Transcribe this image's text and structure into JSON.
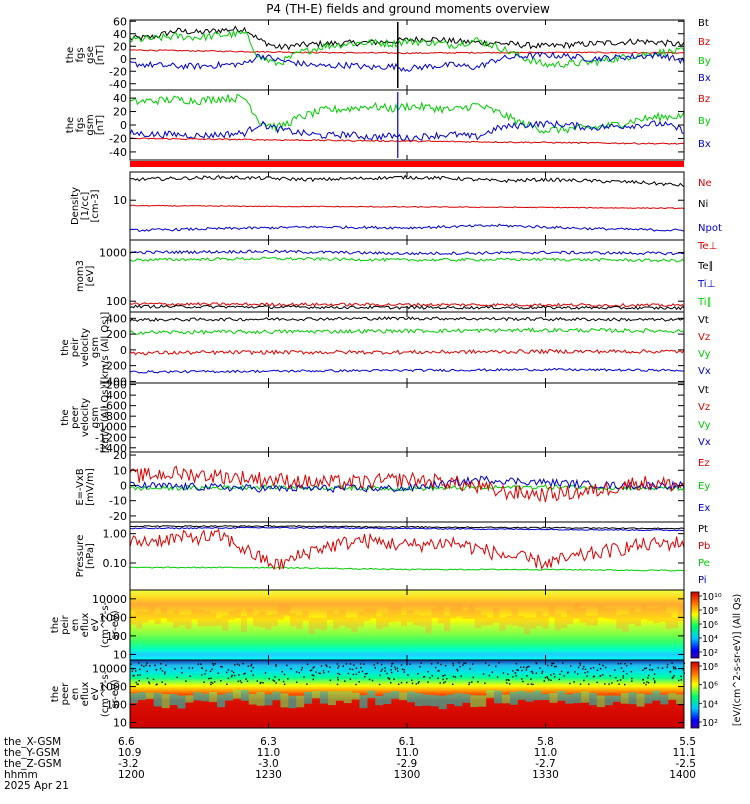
{
  "title": "P4 (TH-E) fields and ground moments overview",
  "chart_data": [
    {
      "type": "line",
      "ylabel": [
        "the",
        "fgs",
        "gse",
        "[nT]"
      ],
      "ylim": [
        -50,
        62
      ],
      "ytick_values": [
        60,
        40,
        20,
        0,
        -20,
        -40
      ],
      "ytick_labels": [
        "60",
        "40",
        "20",
        "0",
        "-20",
        "-40"
      ],
      "legend": [
        {
          "label": "Bt",
          "color": "#000000"
        },
        {
          "label": "Bz",
          "color": "#dd0000"
        },
        {
          "label": "By",
          "color": "#00cc00"
        },
        {
          "label": "Bx",
          "color": "#0000cc"
        }
      ],
      "series": [
        {
          "color": "#000000",
          "x": [
            1200,
            1205,
            1210,
            1215,
            1220,
            1225,
            1228,
            1232,
            1237,
            1242,
            1247,
            1252,
            1257,
            1300,
            1305,
            1310,
            1315,
            1320,
            1325,
            1330,
            1335,
            1340,
            1345,
            1350,
            1355,
            1400
          ],
          "values": [
            32,
            35,
            45,
            42,
            46,
            48,
            30,
            18,
            22,
            24,
            25,
            26,
            28,
            30,
            32,
            28,
            26,
            25,
            22,
            20,
            22,
            24,
            26,
            28,
            26,
            22
          ],
          "noise": 5
        },
        {
          "color": "#dd0000",
          "x": [
            1200,
            1220,
            1240,
            1300,
            1320,
            1340,
            1400
          ],
          "values": [
            14,
            12,
            10,
            9,
            10,
            10,
            9
          ],
          "noise": 1
        },
        {
          "color": "#00cc00",
          "x": [
            1200,
            1205,
            1210,
            1215,
            1220,
            1225,
            1228,
            1232,
            1237,
            1242,
            1247,
            1252,
            1257,
            1300,
            1305,
            1310,
            1315,
            1320,
            1325,
            1330,
            1335,
            1340,
            1345,
            1350,
            1355,
            1400
          ],
          "values": [
            30,
            32,
            36,
            34,
            38,
            40,
            2,
            -8,
            10,
            20,
            24,
            26,
            24,
            28,
            26,
            22,
            30,
            18,
            2,
            -10,
            -8,
            -6,
            0,
            6,
            10,
            12
          ],
          "noise": 6
        },
        {
          "color": "#0000cc",
          "x": [
            1200,
            1205,
            1210,
            1215,
            1220,
            1225,
            1228,
            1232,
            1237,
            1242,
            1247,
            1252,
            1257,
            1300,
            1305,
            1310,
            1315,
            1320,
            1325,
            1330,
            1335,
            1340,
            1345,
            1350,
            1355,
            1400
          ],
          "values": [
            -8,
            -10,
            -12,
            -12,
            -10,
            -8,
            6,
            -2,
            -8,
            -12,
            -10,
            -14,
            -12,
            -16,
            -12,
            -10,
            -14,
            0,
            4,
            6,
            4,
            0,
            2,
            4,
            6,
            -4
          ],
          "noise": 5
        }
      ]
    },
    {
      "type": "line",
      "ylabel": [
        "the",
        "fgs",
        "gsm",
        "[nT]"
      ],
      "ylim": [
        -52,
        52
      ],
      "ytick_values": [
        40,
        20,
        0,
        -20,
        -40
      ],
      "ytick_labels": [
        "40",
        "20",
        "0",
        "-20",
        "-40"
      ],
      "legend": [
        {
          "label": "Bz",
          "color": "#dd0000"
        },
        {
          "label": "By",
          "color": "#00cc00"
        },
        {
          "label": "Bx",
          "color": "#0000cc"
        }
      ],
      "series": [
        {
          "color": "#00cc00",
          "x": [
            1200,
            1205,
            1210,
            1215,
            1220,
            1225,
            1228,
            1232,
            1237,
            1242,
            1247,
            1252,
            1257,
            1300,
            1305,
            1310,
            1315,
            1320,
            1325,
            1330,
            1335,
            1340,
            1345,
            1350,
            1355,
            1400
          ],
          "values": [
            34,
            36,
            38,
            36,
            40,
            40,
            6,
            -4,
            12,
            22,
            24,
            28,
            24,
            28,
            26,
            22,
            30,
            18,
            2,
            -8,
            -6,
            -4,
            0,
            8,
            12,
            14
          ],
          "noise": 6
        },
        {
          "color": "#0000cc",
          "x": [
            1200,
            1205,
            1210,
            1215,
            1220,
            1225,
            1228,
            1232,
            1237,
            1242,
            1247,
            1252,
            1257,
            1300,
            1305,
            1310,
            1315,
            1320,
            1325,
            1330,
            1335,
            1340,
            1345,
            1350,
            1355,
            1400
          ],
          "values": [
            -12,
            -14,
            -14,
            -16,
            -14,
            -12,
            2,
            -6,
            -12,
            -16,
            -14,
            -18,
            -16,
            -20,
            -16,
            -14,
            -18,
            -4,
            0,
            2,
            0,
            -4,
            -2,
            0,
            2,
            -8
          ],
          "noise": 5
        },
        {
          "color": "#dd0000",
          "x": [
            1200,
            1230,
            1300,
            1330,
            1400
          ],
          "values": [
            -20,
            -22,
            -24,
            -26,
            -28
          ],
          "noise": 1
        }
      ]
    },
    {
      "type": "line",
      "ylabel": [
        "Density",
        "[1/cc]",
        "[cm-3]"
      ],
      "log": true,
      "ylim": [
        1.2,
        45
      ],
      "ytick_values": [
        10
      ],
      "ytick_labels": [
        "10"
      ],
      "legend": [
        {
          "label": "Ne",
          "color": "#dd0000"
        },
        {
          "label": "Ni",
          "color": "#000000"
        },
        {
          "label": "Npot",
          "color": "#0000cc"
        }
      ],
      "series": [
        {
          "color": "#000000",
          "x": [
            1200,
            1210,
            1220,
            1230,
            1240,
            1250,
            1300,
            1310,
            1320,
            1330,
            1340,
            1350,
            1400
          ],
          "values": [
            30,
            32,
            34,
            32,
            30,
            32,
            34,
            32,
            28,
            30,
            28,
            26,
            22
          ],
          "noise_log": 0.04
        },
        {
          "color": "#dd0000",
          "x": [
            1200,
            1230,
            1300,
            1330,
            1400
          ],
          "values": [
            7.5,
            7.2,
            7.0,
            6.8,
            6.5
          ],
          "noise_log": 0.01
        },
        {
          "color": "#0000cc",
          "x": [
            1200,
            1220,
            1240,
            1300,
            1320,
            1340,
            1400
          ],
          "values": [
            2.0,
            2.2,
            2.4,
            2.3,
            2.6,
            2.2,
            2.0
          ],
          "noise_log": 0.03
        }
      ]
    },
    {
      "type": "line",
      "ylabel": [
        "mom3",
        "[eV]"
      ],
      "log": true,
      "ylim": [
        60,
        1800
      ],
      "ytick_values": [
        1000,
        100
      ],
      "ytick_labels": [
        "1000",
        "100"
      ],
      "legend": [
        {
          "label": "Te⊥",
          "color": "#dd0000"
        },
        {
          "label": "Te∥",
          "color": "#000000"
        },
        {
          "label": "Ti⊥",
          "color": "#0000cc"
        },
        {
          "label": "Ti∥",
          "color": "#00cc00"
        }
      ],
      "series": [
        {
          "color": "#0000cc",
          "x": [
            1200,
            1230,
            1300,
            1330,
            1400
          ],
          "values": [
            1000,
            1050,
            950,
            1000,
            950
          ],
          "noise_log": 0.03
        },
        {
          "color": "#00cc00",
          "x": [
            1200,
            1230,
            1300,
            1330,
            1400
          ],
          "values": [
            700,
            750,
            700,
            720,
            680
          ],
          "noise_log": 0.03
        },
        {
          "color": "#dd0000",
          "x": [
            1200,
            1230,
            1300,
            1330,
            1400
          ],
          "values": [
            88,
            86,
            85,
            84,
            82
          ],
          "noise_log": 0.03
        },
        {
          "color": "#000000",
          "x": [
            1200,
            1230,
            1300,
            1330,
            1400
          ],
          "values": [
            78,
            76,
            74,
            74,
            72
          ],
          "noise_log": 0.03
        }
      ]
    },
    {
      "type": "line",
      "ylabel": [
        "the",
        "peir",
        "velocity",
        "gsm",
        "[km/s (All Qs)]"
      ],
      "ylim": [
        -420,
        480
      ],
      "ytick_values": [
        400,
        200,
        0,
        -200,
        -400
      ],
      "ytick_labels": [
        "400",
        "200",
        "0",
        "-200",
        "-400"
      ],
      "legend": [
        {
          "label": "Vt",
          "color": "#000000"
        },
        {
          "label": "Vz",
          "color": "#dd0000"
        },
        {
          "label": "Vy",
          "color": "#00cc00"
        },
        {
          "label": "Vx",
          "color": "#0000cc"
        }
      ],
      "series": [
        {
          "color": "#000000",
          "x": [
            1200,
            1230,
            1300,
            1330,
            1400
          ],
          "values": [
            380,
            390,
            400,
            390,
            380
          ],
          "noise": 20
        },
        {
          "color": "#00cc00",
          "x": [
            1200,
            1230,
            1300,
            1330,
            1400
          ],
          "values": [
            220,
            230,
            240,
            250,
            240
          ],
          "noise": 25
        },
        {
          "color": "#dd0000",
          "x": [
            1200,
            1230,
            1300,
            1330,
            1400
          ],
          "values": [
            -40,
            -30,
            -30,
            -20,
            -20
          ],
          "noise": 25
        },
        {
          "color": "#0000cc",
          "x": [
            1200,
            1230,
            1300,
            1330,
            1400
          ],
          "values": [
            -280,
            -270,
            -260,
            -250,
            -260
          ],
          "noise": 15
        }
      ]
    },
    {
      "type": "line",
      "ylabel": [
        "the",
        "peer",
        "velocity",
        "gsm",
        "[km/s (All Qs)]"
      ],
      "ylim": [
        -1480,
        -170
      ],
      "ytick_values": [
        -200,
        -400,
        -600,
        -800,
        -1000,
        -1200,
        -1400
      ],
      "ytick_labels": [
        "-200",
        "-400",
        "-600",
        "-800",
        "-1000",
        "-1200",
        "-1400"
      ],
      "legend": [
        {
          "label": "Vt",
          "color": "#000000"
        },
        {
          "label": "Vz",
          "color": "#dd0000"
        },
        {
          "label": "Vy",
          "color": "#00cc00"
        },
        {
          "label": "Vx",
          "color": "#0000cc"
        }
      ],
      "series": []
    },
    {
      "type": "line",
      "ylabel": [
        "E=-VxB",
        "[mV/m]"
      ],
      "ylim": [
        -24,
        22
      ],
      "ytick_values": [
        20,
        10,
        0,
        -10,
        -20
      ],
      "ytick_labels": [
        "20",
        "10",
        "0",
        "-10",
        "-20"
      ],
      "legend": [
        {
          "label": "Ez",
          "color": "#dd0000"
        },
        {
          "label": "Ey",
          "color": "#00cc00"
        },
        {
          "label": "Ex",
          "color": "#0000cc"
        }
      ],
      "series": [
        {
          "color": "#00cc00",
          "x": [
            1200,
            1230,
            1300,
            1330,
            1400
          ],
          "values": [
            -2,
            -1,
            -2,
            -1,
            -2
          ],
          "noise": 1.5
        },
        {
          "color": "#0000cc",
          "x": [
            1200,
            1230,
            1300,
            1316,
            1330,
            1345,
            1400
          ],
          "values": [
            0,
            -2,
            -2,
            4,
            2,
            0,
            0
          ],
          "noise": 2.5
        },
        {
          "color": "#dd0000",
          "x": [
            1200,
            1210,
            1220,
            1230,
            1240,
            1250,
            1300,
            1310,
            1320,
            1330,
            1340,
            1350,
            1400
          ],
          "values": [
            6,
            8,
            6,
            4,
            2,
            2,
            4,
            2,
            -4,
            -6,
            -4,
            2,
            0
          ],
          "noise": 5
        }
      ]
    },
    {
      "type": "line",
      "ylabel": [
        "Pressure",
        "[nPa]"
      ],
      "log": true,
      "ylim": [
        0.012,
        2.5
      ],
      "ytick_values": [
        1.0,
        0.1
      ],
      "ytick_labels": [
        "1.00",
        "0.10"
      ],
      "legend": [
        {
          "label": "Pt",
          "color": "#000000"
        },
        {
          "label": "Pb",
          "color": "#dd0000"
        },
        {
          "label": "Pe",
          "color": "#00cc00"
        },
        {
          "label": "Pi",
          "color": "#0000cc"
        }
      ],
      "series": [
        {
          "color": "#0000cc",
          "x": [
            1200,
            1230,
            1300,
            1330,
            1400
          ],
          "values": [
            1.5,
            1.6,
            1.5,
            1.4,
            1.3
          ],
          "noise_log": 0.02
        },
        {
          "color": "#000000",
          "x": [
            1200,
            1230,
            1300,
            1330,
            1400
          ],
          "values": [
            1.8,
            1.8,
            1.7,
            1.6,
            1.5
          ],
          "noise_log": 0.02
        },
        {
          "color": "#00cc00",
          "x": [
            1200,
            1230,
            1300,
            1330,
            1400
          ],
          "values": [
            0.07,
            0.07,
            0.06,
            0.06,
            0.055
          ],
          "noise_log": 0.02
        },
        {
          "color": "#dd0000",
          "x": [
            1200,
            1210,
            1220,
            1228,
            1232,
            1240,
            1250,
            1300,
            1310,
            1320,
            1330,
            1340,
            1350,
            1400
          ],
          "values": [
            0.5,
            0.7,
            0.8,
            0.15,
            0.08,
            0.3,
            0.6,
            0.4,
            0.5,
            0.2,
            0.1,
            0.2,
            0.4,
            0.5
          ],
          "noise_log": 0.25
        }
      ]
    },
    {
      "type": "heatmap",
      "ylabel": [
        "the",
        "peir",
        "en",
        "eflux",
        "eV",
        "(cm^2-s-",
        "sr-eV)"
      ],
      "log": true,
      "ylim": [
        5,
        30000
      ],
      "ytick_values": [
        10000,
        1000,
        100,
        10
      ],
      "ytick_labels": [
        "10000",
        "1000",
        "100",
        "10"
      ]
    },
    {
      "type": "heatmap",
      "ylabel": [
        "the",
        "peer",
        "en",
        "eflux",
        "eV",
        "(cm^2-s-",
        "sr-eV)"
      ],
      "log": true,
      "ylim": [
        5,
        30000
      ],
      "ytick_values": [
        10000,
        1000,
        100,
        10
      ],
      "ytick_labels": [
        "10000",
        "1000",
        "100",
        "10"
      ]
    }
  ],
  "colorbars": [
    {
      "ticks": [
        "10¹⁰",
        "10⁸",
        "10⁶",
        "10⁴",
        "10²"
      ]
    },
    {
      "ticks": [
        "10⁸",
        "10⁶",
        "10⁴",
        "10²"
      ]
    }
  ],
  "colorbar_label": "[eV/(cm^2-s-sr-eV)] (All Qs)",
  "x_axis": {
    "range": [
      1200,
      1400
    ],
    "ticks": [
      1200,
      1230,
      1300,
      1330,
      1400
    ],
    "rows": [
      {
        "label": "the_X-GSM",
        "values": [
          "6.6",
          "6.3",
          "6.1",
          "5.8",
          "5.5"
        ]
      },
      {
        "label": "the_Y-GSM",
        "values": [
          "10.9",
          "11.0",
          "11.0",
          "11.0",
          "11.1"
        ]
      },
      {
        "label": "the_Z-GSM",
        "values": [
          "-3.2",
          "-3.0",
          "-2.9",
          "-2.7",
          "-2.5"
        ]
      },
      {
        "label": "hhmm",
        "values": [
          "1200",
          "1230",
          "1300",
          "1330",
          "1400"
        ]
      }
    ],
    "date": "2025 Apr 21"
  }
}
